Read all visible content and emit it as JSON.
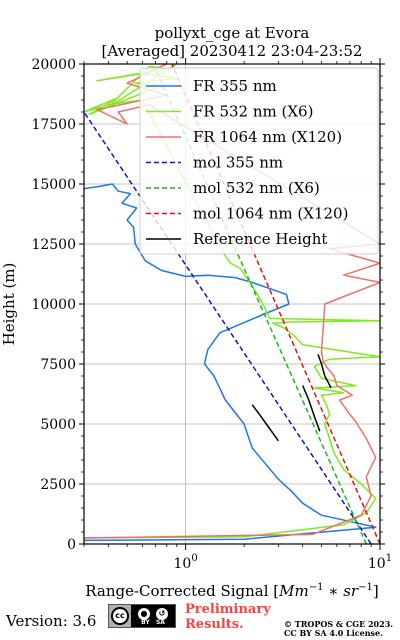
{
  "chart_data": {
    "type": "line",
    "title_line1": "pollyxt_cge at Evora",
    "title_line2": "[Averaged] 20230412 23:04-23:52",
    "xlabel_text": "Range-Corrected Signal [",
    "xlabel_math": "Mm",
    "xlabel_exp1": "−1",
    "xlabel_mid": " ∗ sr",
    "xlabel_exp2": "−1",
    "xlabel_end": "]",
    "ylabel": "Height (m)",
    "xscale": "log",
    "xlim": [
      0.3,
      10
    ],
    "ylim": [
      0,
      20000
    ],
    "yticks": [
      0,
      2500,
      5000,
      7500,
      10000,
      12500,
      15000,
      17500,
      20000
    ],
    "xticks": [
      {
        "value": 1,
        "base": "10",
        "exp": "0"
      },
      {
        "value": 10,
        "base": "10",
        "exp": "1"
      }
    ],
    "grid": true,
    "legend_position": "upper-right",
    "series": [
      {
        "name": "FR 355 nm",
        "color": "#1f77e8",
        "style": "solid",
        "x": [
          0.3,
          2,
          9.5,
          5,
          4,
          3.5,
          3,
          2.6,
          2.2,
          2.0,
          1.6,
          1.4,
          1.25,
          1.3,
          1.5,
          2.4,
          3.4,
          3.3,
          2.2,
          1.8,
          1.3,
          1.0,
          0.75,
          0.62,
          0.55,
          0.54,
          0.5,
          0.56,
          0.47,
          0.52,
          0.45,
          0.42,
          0.36,
          0.3
        ],
        "y": [
          150,
          200,
          700,
          1200,
          1700,
          2200,
          2700,
          3300,
          4000,
          5000,
          6000,
          7000,
          7500,
          8100,
          8800,
          9500,
          10000,
          10400,
          10900,
          11100,
          11200,
          11150,
          11400,
          11800,
          12500,
          13200,
          13500,
          14000,
          14200,
          14600,
          14700,
          15000,
          14900,
          14800
        ]
      },
      {
        "name": "FR 532 nm (X6)",
        "color": "#7fea1f",
        "style": "solid",
        "x": [
          0.3,
          2,
          6.5,
          8.5,
          9.5,
          8,
          6.5,
          5.8,
          5.5,
          5.2,
          5.5,
          5.3,
          5.0,
          6.5,
          4.6,
          7.5,
          5.0,
          4.6,
          5.5,
          10,
          4.0,
          3.6,
          3.2,
          3.0,
          2.8,
          3.5,
          10,
          2.7,
          2.5,
          2.3,
          2.1,
          1.9,
          1.7,
          1.6,
          1.5,
          0.6,
          0.4,
          0.3,
          0.45,
          0.32,
          0.7,
          0.55,
          0.9,
          0.6,
          0.35,
          0.8,
          0.65,
          0.4,
          0.9
        ],
        "y": [
          250,
          300,
          800,
          1300,
          1900,
          2500,
          3100,
          3800,
          4400,
          5000,
          5400,
          5800,
          6200,
          6300,
          6500,
          6600,
          6900,
          7400,
          7700,
          7800,
          8300,
          8700,
          9000,
          9100,
          9200,
          9250,
          9300,
          9400,
          10000,
          10500,
          11000,
          11500,
          11700,
          12000,
          12400,
          18500,
          18300,
          18000,
          18600,
          17900,
          19000,
          19200,
          19400,
          19600,
          19300,
          19800,
          19900,
          18200,
          20000
        ]
      },
      {
        "name": "FR 1064 nm (X120)",
        "color": "#f07068",
        "style": "solid",
        "x": [
          0.3,
          4.5,
          8,
          9,
          8.5,
          9.5,
          8.5,
          7.5,
          7,
          6.2,
          7.2,
          6.0,
          5.8,
          5.4,
          5.1,
          5.0,
          5.1,
          5.2,
          10,
          6.5,
          10,
          5.5,
          10,
          0.65,
          0.45,
          0.5,
          0.35,
          0.8,
          0.5,
          0.6,
          0.7,
          0.8
        ],
        "y": [
          250,
          400,
          1200,
          2000,
          2800,
          3600,
          4400,
          5100,
          5400,
          6000,
          6200,
          6600,
          7000,
          7300,
          7600,
          8000,
          9000,
          10000,
          10900,
          11200,
          11700,
          12300,
          12500,
          18300,
          18000,
          17500,
          18100,
          18700,
          19200,
          19500,
          19800,
          20000
        ]
      },
      {
        "name": "mol 355 nm",
        "color": "#1010e0",
        "style": "dashed",
        "x": [
          9.0,
          0.3
        ],
        "y": [
          0,
          18000
        ]
      },
      {
        "name": "mol 532 nm (X6)",
        "color": "#10c010",
        "style": "dashed",
        "x": [
          8.5,
          0.7
        ],
        "y": [
          0,
          19800
        ]
      },
      {
        "name": "mol 1064 nm (X120)",
        "color": "#e01010",
        "style": "dashed",
        "x": [
          10,
          0.85
        ],
        "y": [
          0,
          20000
        ]
      },
      {
        "name": "Reference Height",
        "color": "#000000",
        "style": "solid",
        "segments": [
          {
            "x": [
              3.0,
              2.6,
              2.4,
              2.2
            ],
            "y": [
              4300,
              5000,
              5400,
              5800
            ]
          },
          {
            "x": [
              4.9,
              4.6,
              4.3,
              4.0
            ],
            "y": [
              4700,
              5300,
              6000,
              6600
            ]
          },
          {
            "x": [
              5.6,
              5.2,
              5.0,
              4.8
            ],
            "y": [
              6500,
              7000,
              7500,
              7900
            ]
          }
        ]
      }
    ]
  },
  "footer": {
    "version": "Version: 3.6",
    "cc_logo": "cc",
    "cc_by": "BY",
    "cc_sa": "SA",
    "preliminary_line1": "Preliminary",
    "preliminary_line2": "Results.",
    "copyright_line1": "© TROPOS & CGE 2023.",
    "copyright_line2": "CC BY SA 4.0 License."
  }
}
